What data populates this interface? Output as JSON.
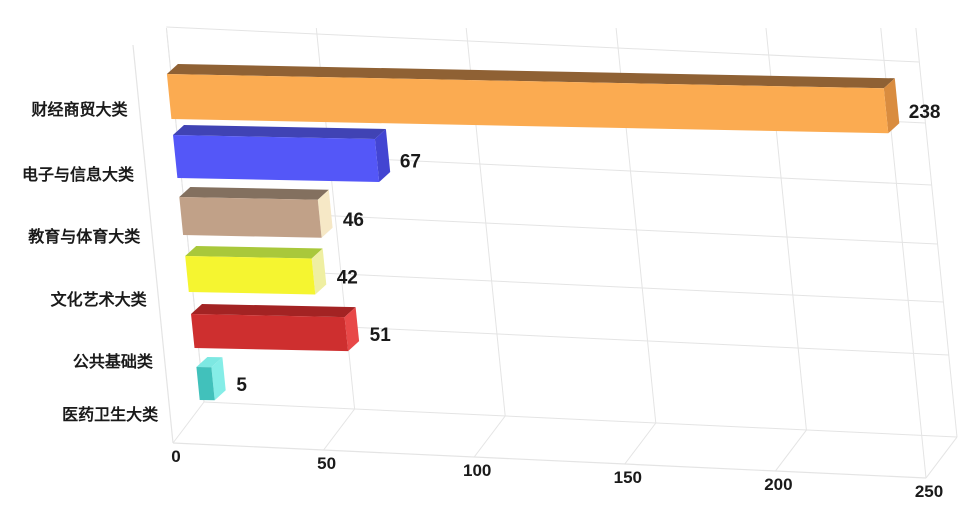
{
  "chart_data": {
    "type": "bar",
    "orientation": "horizontal",
    "style": "3d-cuboid",
    "title": "",
    "xlabel": "",
    "ylabel": "",
    "categories": [
      "财经商贸大类",
      "电子与信息大类",
      "教育与体育大类",
      "文化艺术大类",
      "公共基础类",
      "医药卫生大类"
    ],
    "values": [
      238,
      67,
      46,
      42,
      51,
      5
    ],
    "value_labels": [
      "238",
      "67",
      "46",
      "42",
      "51",
      "5"
    ],
    "x_ticks": [
      "0",
      "50",
      "100",
      "150",
      "200",
      "250"
    ],
    "x_tick_values": [
      0,
      50,
      100,
      150,
      200,
      250
    ],
    "xlim": [
      0,
      250
    ],
    "grid": true,
    "legend_position": "none",
    "background_color": "#FFFFFF",
    "grid_color": "#E4E4E4",
    "axis_color": "#DADADA",
    "text_color": "#1A1A1A",
    "bar_face_colors": [
      {
        "name": "orange",
        "front": "#FBAB51",
        "top": "#8F6134",
        "side": "#D98C3F"
      },
      {
        "name": "blue",
        "front": "#5457F8",
        "top": "#4043B4",
        "side": "#4345D2"
      },
      {
        "name": "tan",
        "front": "#C1A188",
        "top": "#83705F",
        "side": "#F6E8C6"
      },
      {
        "name": "yellow",
        "front": "#F5F530",
        "top": "#A9C83B",
        "side": "#EFEFA2"
      },
      {
        "name": "red",
        "front": "#CE2F2F",
        "top": "#A32323",
        "side": "#E84848"
      },
      {
        "name": "cyan",
        "front": "#41C1BB",
        "top": "#7DE8E2",
        "side": "#85EDE7"
      }
    ]
  }
}
